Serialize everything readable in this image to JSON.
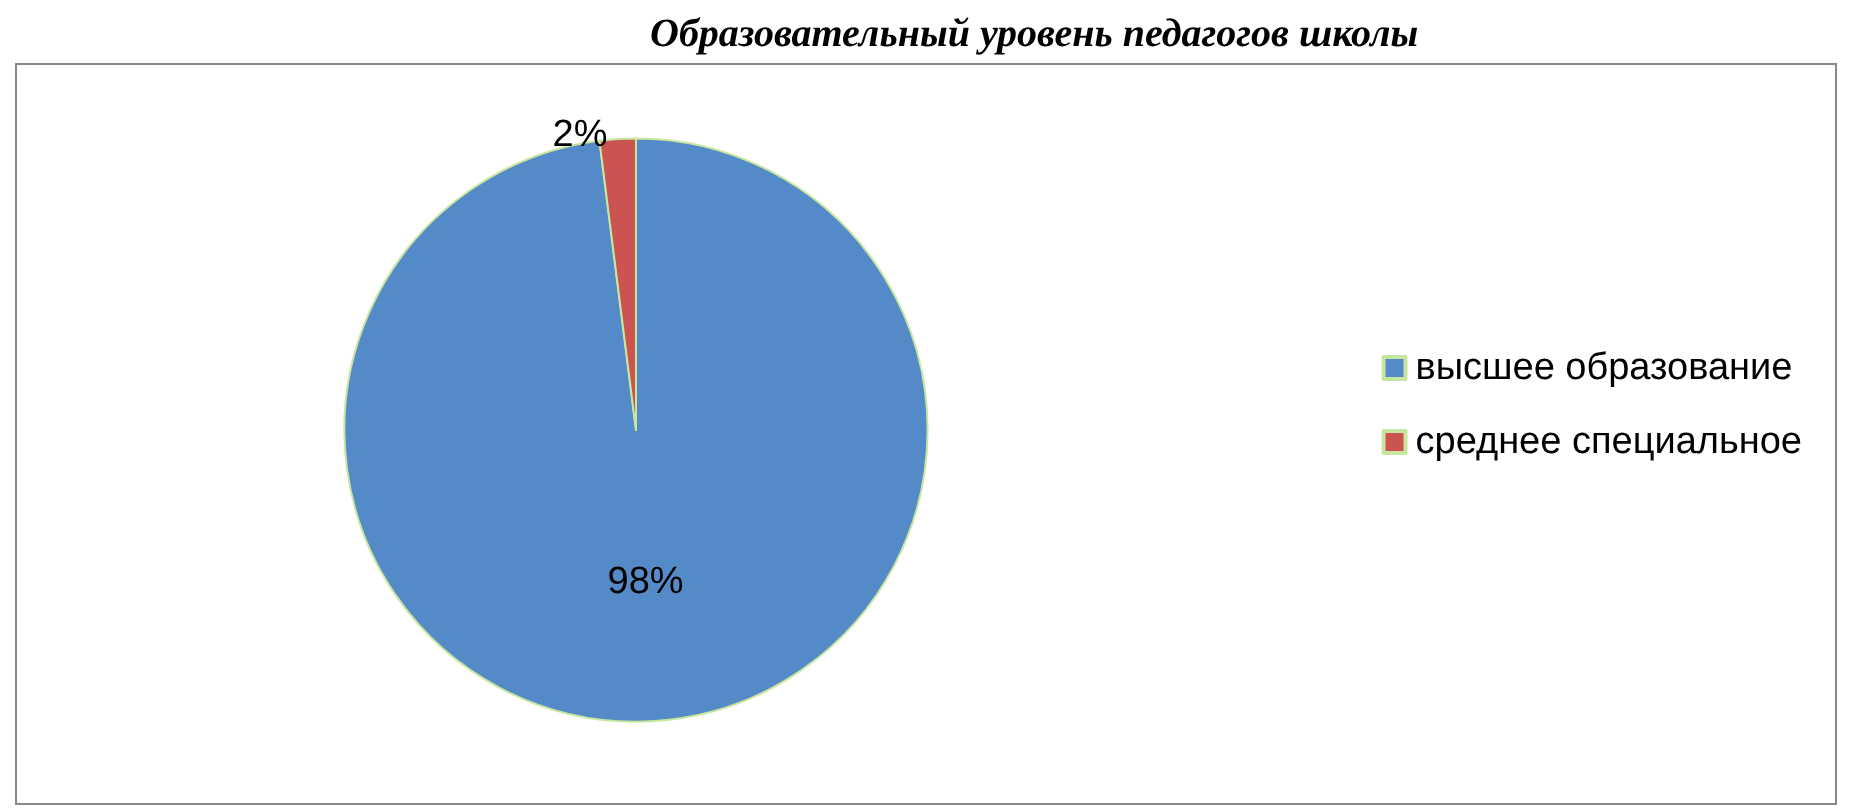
{
  "chart_data": {
    "type": "pie",
    "title": "Образовательный уровень педагогов школы",
    "categories": [
      "высшее образование",
      "среднее специальное"
    ],
    "values": [
      98,
      2
    ],
    "colors": [
      "#558ac8",
      "#cc5450"
    ],
    "value_labels": [
      "98%",
      "2%"
    ],
    "legend": "right"
  }
}
